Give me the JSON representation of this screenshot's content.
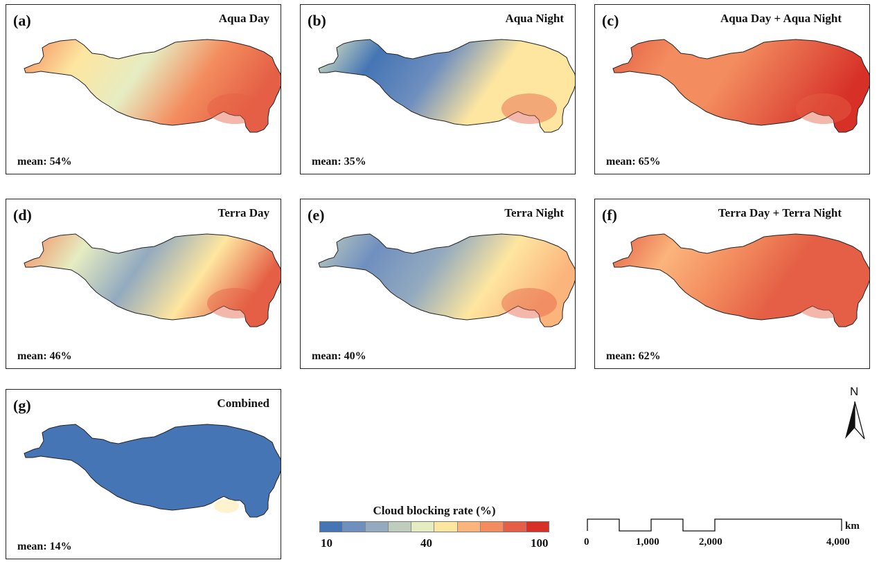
{
  "figure": {
    "panels": [
      {
        "id": "a",
        "label": "(a)",
        "title": "Aqua Day",
        "mean": "mean: 54%",
        "mean_value": 54,
        "palette": "aqua-day"
      },
      {
        "id": "b",
        "label": "(b)",
        "title": "Aqua Night",
        "mean": "mean: 35%",
        "mean_value": 35,
        "palette": "aqua-night"
      },
      {
        "id": "c",
        "label": "(c)",
        "title": "Aqua Day + Aqua Night",
        "mean": "mean: 65%",
        "mean_value": 65,
        "palette": "aqua-combined"
      },
      {
        "id": "d",
        "label": "(d)",
        "title": "Terra Day",
        "mean": "mean: 46%",
        "mean_value": 46,
        "palette": "terra-day"
      },
      {
        "id": "e",
        "label": "(e)",
        "title": "Terra Night",
        "mean": "mean: 40%",
        "mean_value": 40,
        "palette": "terra-night"
      },
      {
        "id": "f",
        "label": "(f)",
        "title": "Terra Day + Terra Night",
        "mean": "mean: 62%",
        "mean_value": 62,
        "palette": "terra-combined"
      },
      {
        "id": "g",
        "label": "(g)",
        "title": "Combined",
        "mean": "mean: 14%",
        "mean_value": 14,
        "palette": "combined"
      }
    ]
  },
  "legend": {
    "title": "Cloud blocking rate (%)",
    "ticks": [
      "10",
      "40",
      "100"
    ],
    "colors": [
      "#4575b4",
      "#6f8fbf",
      "#93aabf",
      "#bfcdbe",
      "#e6ecc2",
      "#fee6a0",
      "#fbb47c",
      "#f38c5e",
      "#e45f45",
      "#d73027"
    ]
  },
  "scale_bar": {
    "unit": "km",
    "labels": [
      "0",
      "1,000",
      "2,000",
      "4,000"
    ]
  },
  "north_arrow": {
    "letter": "N",
    "icon": "north-arrow-icon"
  }
}
